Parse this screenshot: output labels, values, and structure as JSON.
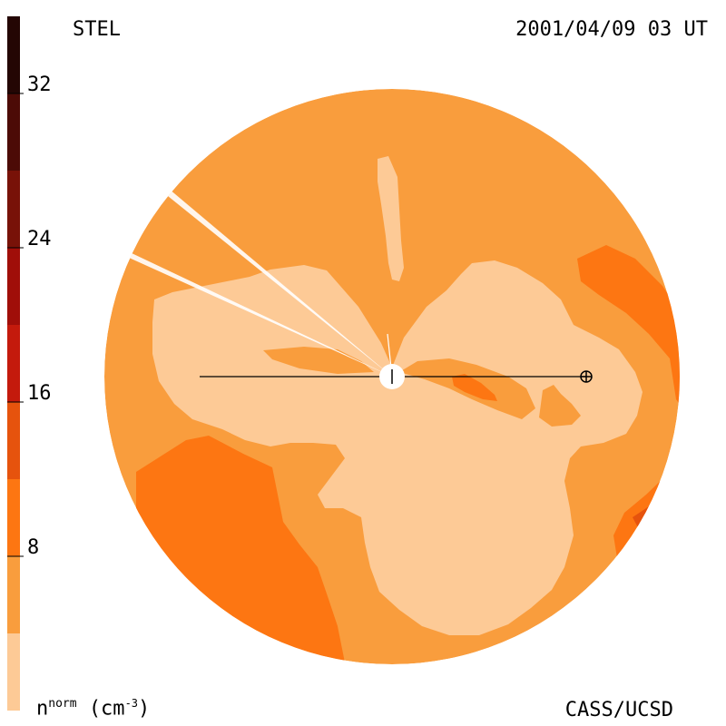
{
  "header": {
    "instrument": "STEL",
    "datetime": "2001/04/09 03 UT"
  },
  "footer": {
    "credit": "CASS/UCSD"
  },
  "colorbar": {
    "label_base": "n",
    "label_sup": "norm",
    "label_unit_open": "(cm",
    "label_unit_exp": "-3",
    "label_unit_close": ")",
    "ticks": [
      "8",
      "16",
      "24",
      "32"
    ],
    "levels": [
      {
        "from": 0,
        "to": 4,
        "color": "#fdca96"
      },
      {
        "from": 4,
        "to": 8,
        "color": "#f99d3d"
      },
      {
        "from": 8,
        "to": 12,
        "color": "#fd7612"
      },
      {
        "from": 12,
        "to": 16,
        "color": "#e6530d"
      },
      {
        "from": 16,
        "to": 20,
        "color": "#c41a0c"
      },
      {
        "from": 20,
        "to": 24,
        "color": "#a00e09"
      },
      {
        "from": 24,
        "to": 28,
        "color": "#781208"
      },
      {
        "from": 28,
        "to": 32,
        "color": "#4c0b06"
      },
      {
        "from": 32,
        "to": 36,
        "color": "#240604"
      }
    ]
  },
  "colors": {
    "background_level": "#f99d3d",
    "low_level": "#fdca96",
    "mid_level": "#fd7612",
    "high_level": "#e6530d",
    "sun": "#ffffff",
    "line": "#000000"
  },
  "markers": {
    "sun_icon": "sun-icon",
    "earth_icon": "earth-icon"
  }
}
